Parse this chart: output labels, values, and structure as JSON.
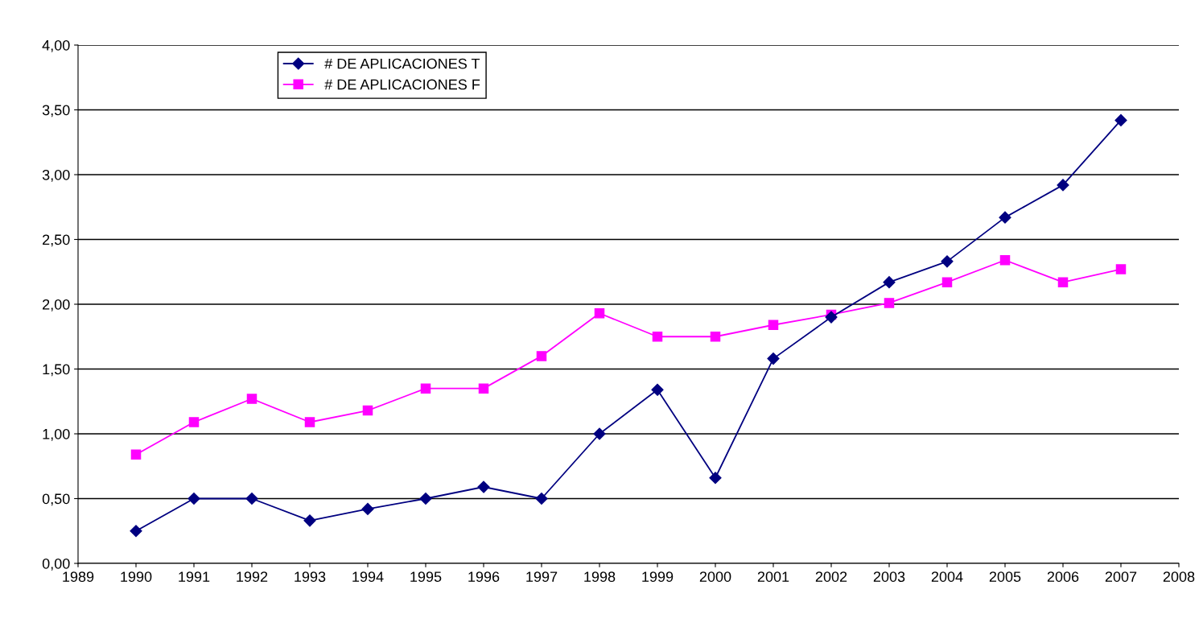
{
  "chart_data": {
    "type": "line",
    "x": [
      1990,
      1991,
      1992,
      1993,
      1994,
      1995,
      1996,
      1997,
      1998,
      1999,
      2000,
      2001,
      2002,
      2003,
      2004,
      2005,
      2006,
      2007
    ],
    "series": [
      {
        "name": "# DE APLICACIONES T",
        "color": "#000080",
        "marker": "diamond",
        "values": [
          0.25,
          0.5,
          0.5,
          0.33,
          0.42,
          0.5,
          0.59,
          0.5,
          1.0,
          1.34,
          0.66,
          1.58,
          1.9,
          2.17,
          2.33,
          2.67,
          2.92,
          3.42
        ]
      },
      {
        "name": "# DE APLICACIONES F",
        "color": "#ff00ff",
        "marker": "square",
        "values": [
          0.84,
          1.09,
          1.27,
          1.09,
          1.18,
          1.35,
          1.35,
          1.6,
          1.93,
          1.75,
          1.75,
          1.84,
          1.92,
          2.01,
          2.17,
          2.34,
          2.17,
          2.27
        ]
      }
    ],
    "xlim": [
      1989,
      2008
    ],
    "xticks": [
      1989,
      1990,
      1991,
      1992,
      1993,
      1994,
      1995,
      1996,
      1997,
      1998,
      1999,
      2000,
      2001,
      2002,
      2003,
      2004,
      2005,
      2006,
      2007,
      2008
    ],
    "ylim": [
      0,
      4
    ],
    "yticks": [
      {
        "value": 0,
        "label": "0,00"
      },
      {
        "value": 0.5,
        "label": "0,50"
      },
      {
        "value": 1,
        "label": "1,00"
      },
      {
        "value": 1.5,
        "label": "1,50"
      },
      {
        "value": 2,
        "label": "2,00"
      },
      {
        "value": 2.5,
        "label": "2,50"
      },
      {
        "value": 3,
        "label": "3,00"
      },
      {
        "value": 3.5,
        "label": "3,50"
      },
      {
        "value": 4,
        "label": "4,00"
      }
    ],
    "grid": "y",
    "legend": "top left",
    "line_style": "solid"
  }
}
